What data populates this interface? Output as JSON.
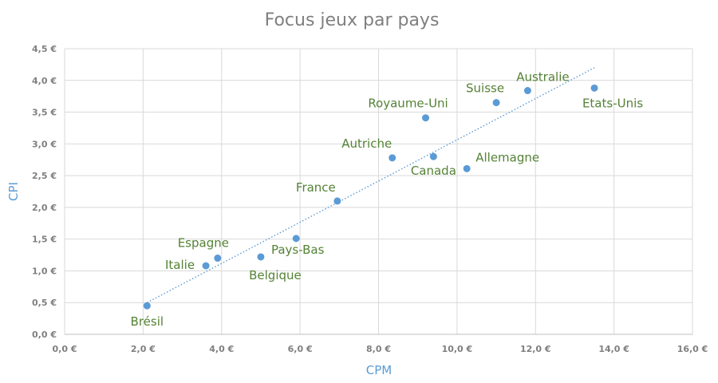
{
  "chart_data": {
    "type": "scatter",
    "title": "Focus jeux par pays",
    "xlabel": "CPM",
    "ylabel": "CPI",
    "xlim": [
      0,
      16
    ],
    "ylim": [
      0,
      4.5
    ],
    "x_ticks": [
      0,
      2,
      4,
      6,
      8,
      10,
      12,
      14,
      16
    ],
    "y_ticks": [
      0,
      0.5,
      1,
      1.5,
      2,
      2.5,
      3,
      3.5,
      4,
      4.5
    ],
    "x_tick_labels": [
      "0,0 €",
      "2,0 €",
      "4,0 €",
      "6,0 €",
      "8,0 €",
      "10,0 €",
      "12,0 €",
      "14,0 €",
      "16,0 €"
    ],
    "y_tick_labels": [
      "0,0 €",
      "0,5 €",
      "1,0 €",
      "1,5 €",
      "2,0 €",
      "2,5 €",
      "3,0 €",
      "3,5 €",
      "4,0 €",
      "4,5 €"
    ],
    "grid": true,
    "trendline": {
      "style": "dotted",
      "x": [
        2.1,
        13.5
      ],
      "y": [
        0.5,
        4.2
      ]
    },
    "points": [
      {
        "label": "Brésil",
        "x": 2.1,
        "y": 0.45
      },
      {
        "label": "Italie",
        "x": 3.6,
        "y": 1.08
      },
      {
        "label": "Espagne",
        "x": 3.9,
        "y": 1.2
      },
      {
        "label": "Belgique",
        "x": 5.0,
        "y": 1.22
      },
      {
        "label": "Pays-Bas",
        "x": 5.9,
        "y": 1.51
      },
      {
        "label": "France",
        "x": 6.95,
        "y": 2.1
      },
      {
        "label": "Autriche",
        "x": 8.35,
        "y": 2.78
      },
      {
        "label": "Canada",
        "x": 9.4,
        "y": 2.8
      },
      {
        "label": "Royaume-Uni",
        "x": 9.2,
        "y": 3.41
      },
      {
        "label": "Allemagne",
        "x": 10.25,
        "y": 2.61
      },
      {
        "label": "Suisse",
        "x": 11.0,
        "y": 3.65
      },
      {
        "label": "Australie",
        "x": 11.8,
        "y": 3.84
      },
      {
        "label": "Etats-Unis",
        "x": 13.5,
        "y": 3.88
      }
    ],
    "colors": {
      "points": "#5b9bd5",
      "labels": "#548235",
      "trendline": "#5b9bd5"
    }
  }
}
